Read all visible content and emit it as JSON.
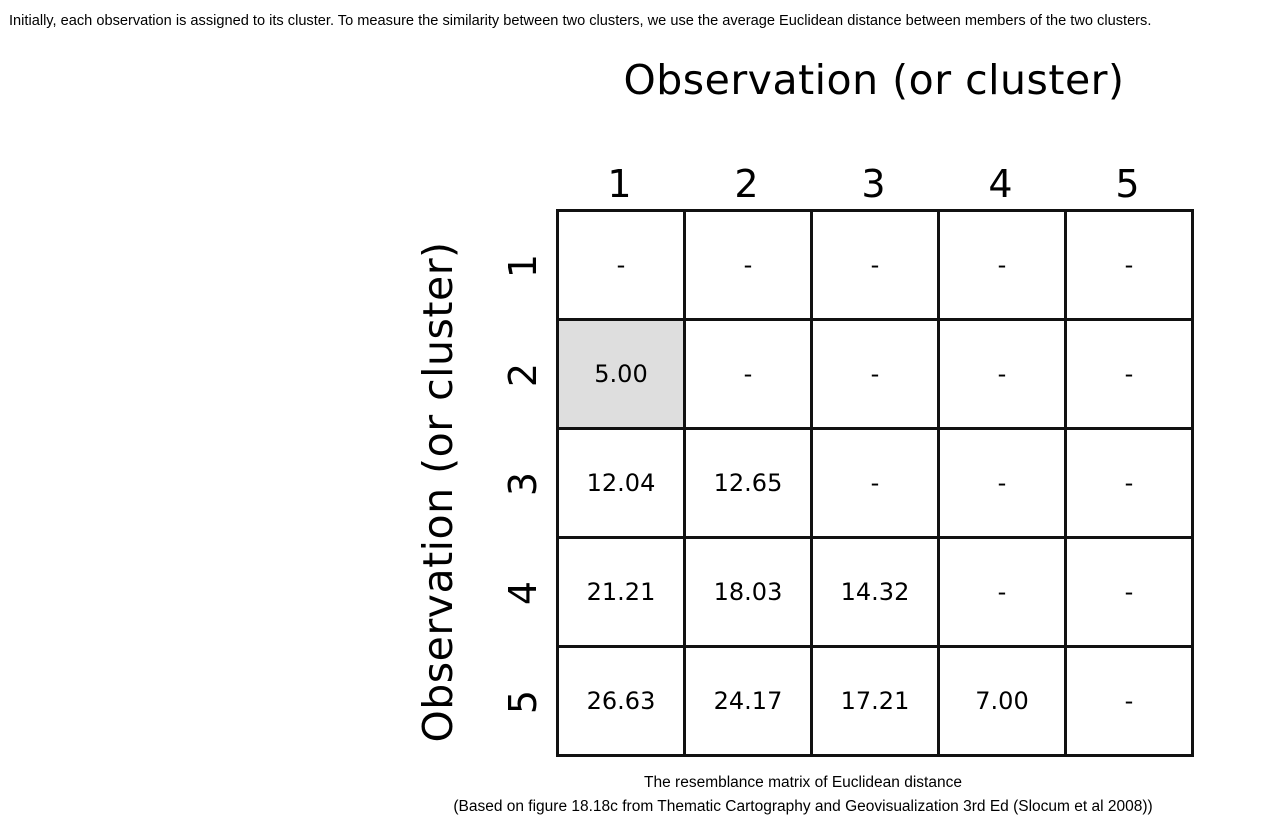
{
  "intro_text": "Initially, each observation is assigned to its cluster. To measure the similarity between two clusters, we use the average Euclidean distance between members of the two clusters.",
  "figure": {
    "column_axis_title": "Observation (or cluster)",
    "row_axis_title": "Observation (or cluster)",
    "column_labels": [
      "1",
      "2",
      "3",
      "4",
      "5"
    ],
    "row_labels": [
      "1",
      "2",
      "3",
      "4",
      "5"
    ],
    "highlight_color": "#dedede",
    "highlighted_cell": {
      "row": "2",
      "column": "1"
    },
    "rows": [
      [
        "-",
        "-",
        "-",
        "-",
        "-"
      ],
      [
        "5.00",
        "-",
        "-",
        "-",
        "-"
      ],
      [
        "12.04",
        "12.65",
        "-",
        "-",
        "-"
      ],
      [
        "21.21",
        "18.03",
        "14.32",
        "-",
        "-"
      ],
      [
        "26.63",
        "24.17",
        "17.21",
        "7.00",
        "-"
      ]
    ]
  },
  "caption": {
    "line1": "The resemblance matrix of Euclidean distance",
    "line2": "(Based on figure 18.18c from Thematic Cartography and Geovisualization 3rd Ed (Slocum et al 2008))"
  }
}
